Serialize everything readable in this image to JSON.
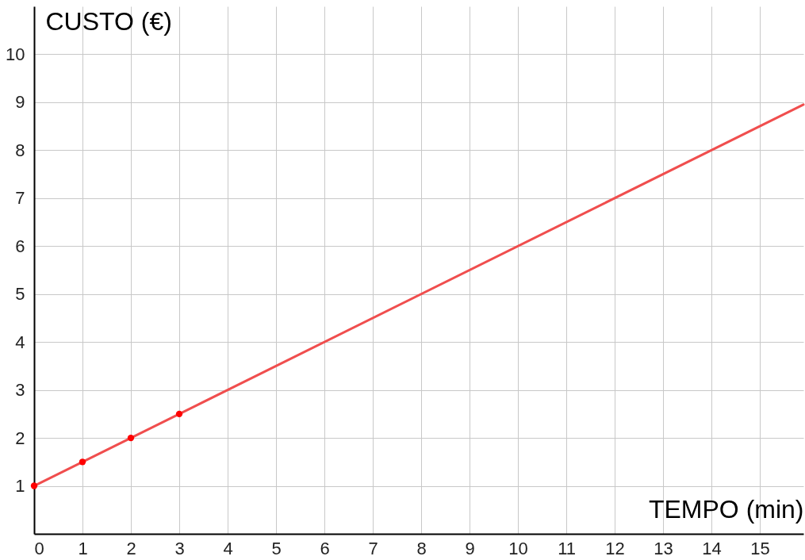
{
  "chart_data": {
    "type": "line",
    "xlabel": "TEMPO (min)",
    "ylabel": "CUSTO (€)",
    "xlim": [
      0,
      15.9
    ],
    "ylim": [
      0,
      11
    ],
    "xticks": [
      0,
      1,
      2,
      3,
      4,
      5,
      6,
      7,
      8,
      9,
      10,
      11,
      12,
      13,
      14,
      15
    ],
    "yticks": [
      1,
      2,
      3,
      4,
      5,
      6,
      7,
      8,
      9,
      10
    ],
    "grid": true,
    "series": [
      {
        "type": "line",
        "color": "#f04e4e",
        "x": [
          0,
          15.9
        ],
        "values": [
          1,
          8.95
        ]
      },
      {
        "type": "scatter",
        "color": "#ff0000",
        "marker": "circle",
        "x": [
          0,
          1,
          2,
          3
        ],
        "values": [
          1,
          1.5,
          2,
          2.5
        ]
      }
    ]
  }
}
